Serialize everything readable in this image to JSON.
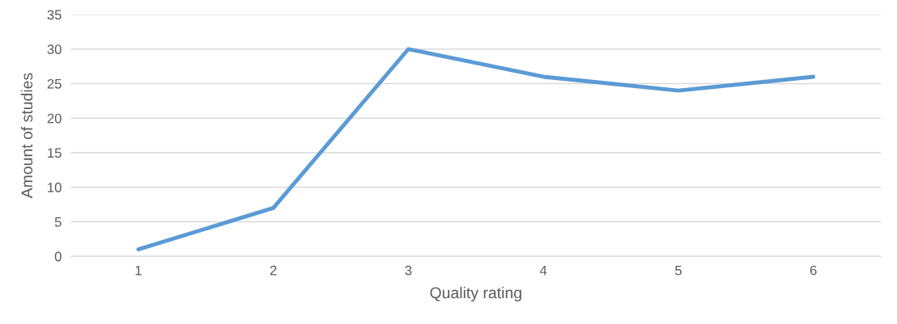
{
  "chart_data": {
    "type": "line",
    "xlabel": "Quality rating",
    "ylabel": "Amount of studies",
    "categories": [
      "1",
      "2",
      "3",
      "4",
      "5",
      "6"
    ],
    "series": [
      {
        "color": "#5b9bd5",
        "values": [
          1,
          7,
          30,
          26,
          24,
          26
        ]
      }
    ],
    "ylim": [
      0,
      35
    ],
    "yticks": [
      0,
      5,
      10,
      15,
      20,
      25,
      30,
      35
    ],
    "grid": "y",
    "marker": "none",
    "line_style": "solid",
    "legend": false
  }
}
